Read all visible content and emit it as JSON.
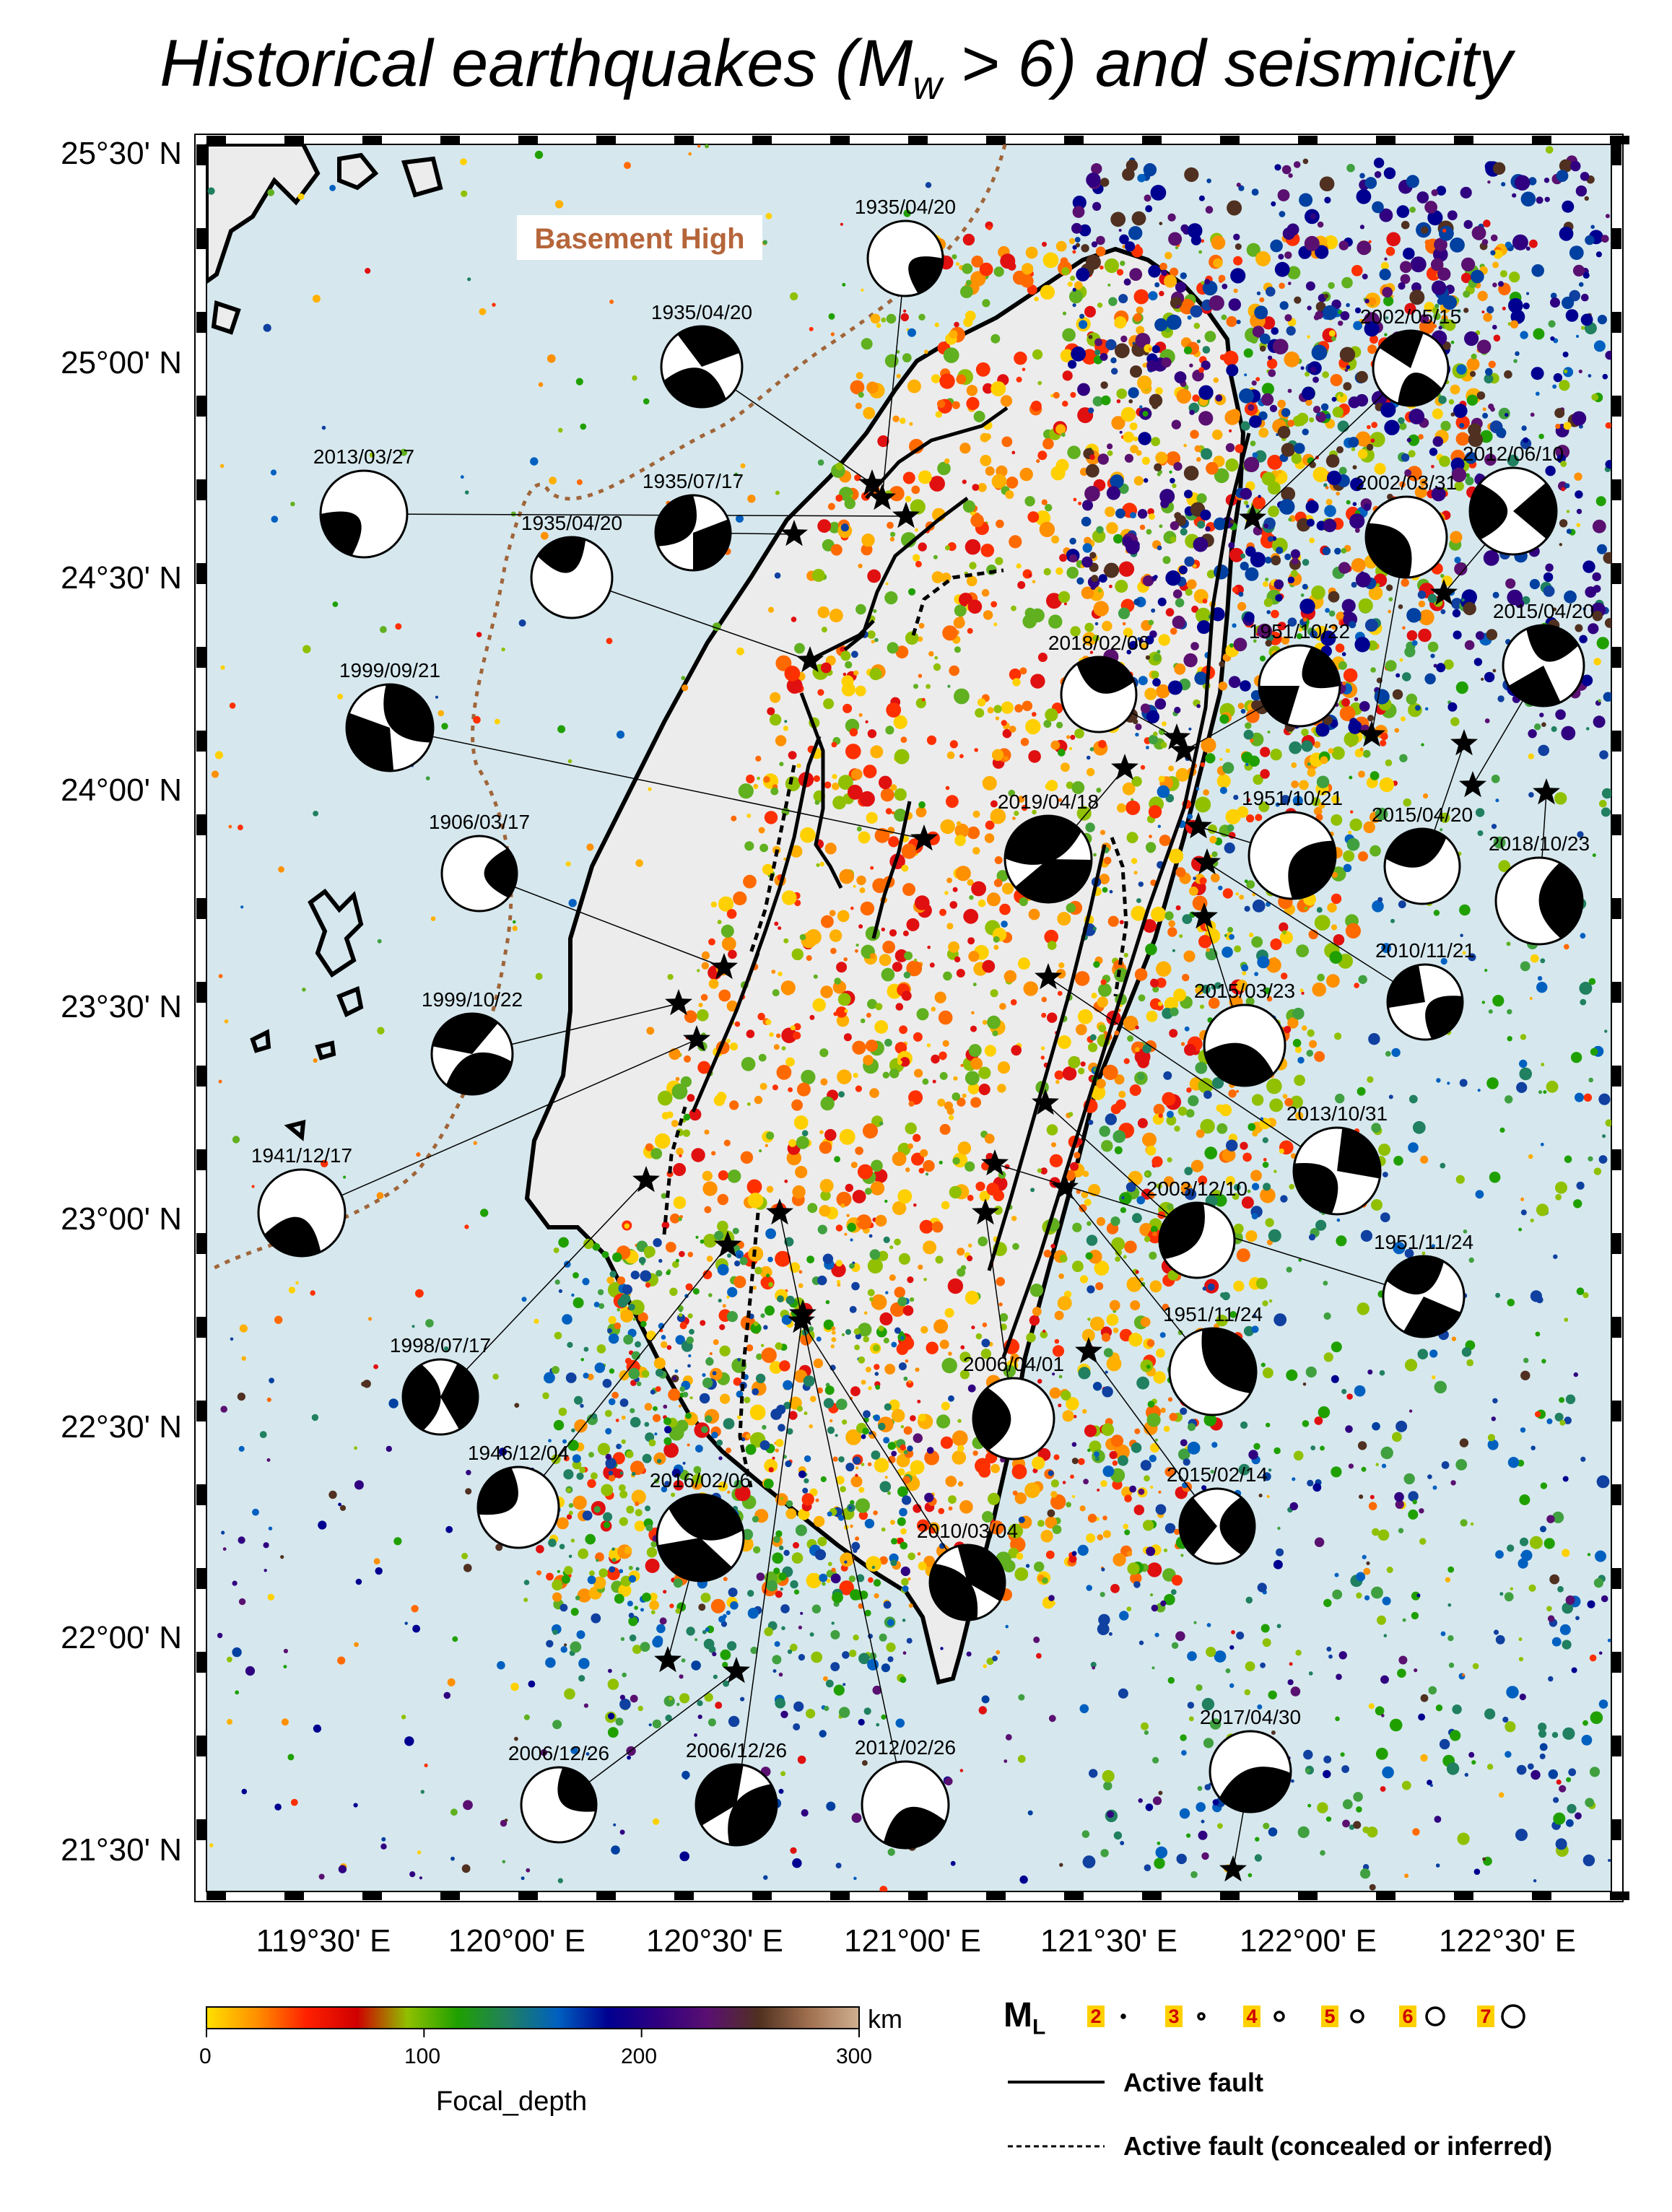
{
  "title": {
    "main": "Historical earthquakes (M",
    "sub": "w",
    "tail": " > 6) and seismicity"
  },
  "map": {
    "lat_labels": [
      "25°30' N",
      "25°00' N",
      "24°30' N",
      "24°00' N",
      "23°30' N",
      "23°00' N",
      "22°30' N",
      "22°00' N",
      "21°30' N"
    ],
    "lon_labels": [
      "119°30' E",
      "120°00' E",
      "120°30' E",
      "121°00' E",
      "121°30' E",
      "122°00' E",
      "122°30' E"
    ],
    "basement_high_label": "Basement High",
    "colors": {
      "sea": "#d6e8ee",
      "land": "#ececec",
      "basement_text": "#b5653a",
      "basement_line": "#a0653a"
    },
    "events": [
      {
        "date": "1935/04/20",
        "focal_icon": "beachball-icon"
      },
      {
        "date": "1935/04/20",
        "focal_icon": "beachball-icon"
      },
      {
        "date": "2013/03/27",
        "focal_icon": "beachball-icon"
      },
      {
        "date": "1935/07/17",
        "focal_icon": "beachball-icon"
      },
      {
        "date": "1935/04/20",
        "focal_icon": "beachball-icon"
      },
      {
        "date": "1999/09/21",
        "focal_icon": "beachball-icon"
      },
      {
        "date": "1906/03/17",
        "focal_icon": "beachball-icon"
      },
      {
        "date": "1999/10/22",
        "focal_icon": "beachball-icon"
      },
      {
        "date": "1941/12/17",
        "focal_icon": "beachball-icon"
      },
      {
        "date": "1998/07/17",
        "focal_icon": "beachball-icon"
      },
      {
        "date": "1946/12/04",
        "focal_icon": "beachball-icon"
      },
      {
        "date": "2016/02/06",
        "focal_icon": "beachball-icon"
      },
      {
        "date": "2006/12/26",
        "focal_icon": "beachball-icon"
      },
      {
        "date": "2006/12/26",
        "focal_icon": "beachball-icon"
      },
      {
        "date": "2012/02/26",
        "focal_icon": "beachball-icon"
      },
      {
        "date": "2010/03/04",
        "focal_icon": "beachball-icon"
      },
      {
        "date": "2006/04/01",
        "focal_icon": "beachball-icon"
      },
      {
        "date": "2019/04/18",
        "focal_icon": "beachball-icon"
      },
      {
        "date": "2018/02/06",
        "focal_icon": "beachball-icon"
      },
      {
        "date": "1951/10/22",
        "focal_icon": "beachball-icon"
      },
      {
        "date": "1951/10/21",
        "focal_icon": "beachball-icon"
      },
      {
        "date": "2002/05/15",
        "focal_icon": "beachball-icon"
      },
      {
        "date": "2002/03/31",
        "focal_icon": "beachball-icon"
      },
      {
        "date": "2012/06/10",
        "focal_icon": "beachball-icon"
      },
      {
        "date": "2015/04/20",
        "focal_icon": "beachball-icon"
      },
      {
        "date": "2015/04/20",
        "focal_icon": "beachball-icon"
      },
      {
        "date": "2018/10/23",
        "focal_icon": "beachball-icon"
      },
      {
        "date": "2010/11/21",
        "focal_icon": "beachball-icon"
      },
      {
        "date": "2015/03/23",
        "focal_icon": "beachball-icon"
      },
      {
        "date": "2013/10/31",
        "focal_icon": "beachball-icon"
      },
      {
        "date": "2003/12/10",
        "focal_icon": "beachball-icon"
      },
      {
        "date": "1951/11/24",
        "focal_icon": "beachball-icon"
      },
      {
        "date": "1951/11/24",
        "focal_icon": "beachball-icon"
      },
      {
        "date": "2015/02/14",
        "focal_icon": "beachball-icon"
      },
      {
        "date": "2017/04/30",
        "focal_icon": "beachball-icon"
      }
    ]
  },
  "colorbar": {
    "ticks": [
      "0",
      "100",
      "200",
      "300"
    ],
    "unit": "km",
    "label": "Focal_depth",
    "depth_range_km": [
      0,
      300
    ],
    "colors": [
      "#ffe000",
      "#ff9000",
      "#ff2000",
      "#d00000",
      "#90c000",
      "#20a000",
      "#208060",
      "#0060c0",
      "#000090",
      "#300080",
      "#5a1070",
      "#503020",
      "#a07050",
      "#d0b090"
    ]
  },
  "legend": {
    "magnitude_symbol": "M",
    "magnitude_sub": "L",
    "magnitudes": [
      "2",
      "3",
      "4",
      "5",
      "6",
      "7"
    ],
    "active_fault": "Active fault",
    "active_fault_concealed": "Active fault (concealed or inferred)"
  }
}
